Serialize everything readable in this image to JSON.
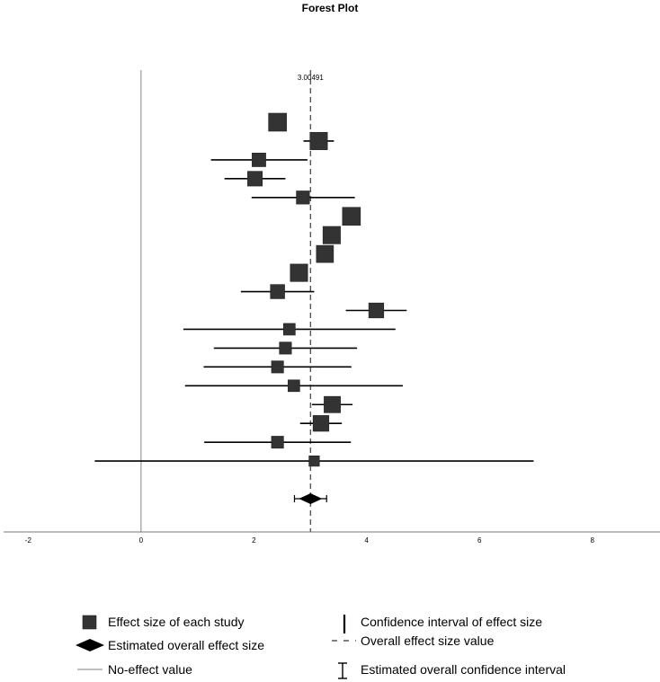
{
  "chart_data": {
    "type": "forest",
    "title": "Forest Plot",
    "xlabel": "",
    "ylabel": "",
    "xlim": [
      -2.5,
      9.2
    ],
    "x_ticks": [
      "-2",
      "0",
      "2",
      "4",
      "6",
      "8"
    ],
    "x_tick_values": [
      -2,
      0,
      2,
      4,
      6,
      8
    ],
    "no_effect_value": 0,
    "overall": {
      "estimate": 3.00491,
      "estimate_label": "3.00491",
      "ci_low": 2.72,
      "ci_high": 3.29
    },
    "studies": [
      {
        "estimate": 2.42,
        "ci_low": 2.38,
        "ci_high": 2.46,
        "weight": 1.0
      },
      {
        "estimate": 3.15,
        "ci_low": 2.88,
        "ci_high": 3.42,
        "weight": 0.95
      },
      {
        "estimate": 2.09,
        "ci_low": 1.24,
        "ci_high": 2.95,
        "weight": 0.6
      },
      {
        "estimate": 2.02,
        "ci_low": 1.48,
        "ci_high": 2.56,
        "weight": 0.7
      },
      {
        "estimate": 2.87,
        "ci_low": 1.96,
        "ci_high": 3.79,
        "weight": 0.55
      },
      {
        "estimate": 3.73,
        "ci_low": 3.71,
        "ci_high": 3.75,
        "weight": 1.0
      },
      {
        "estimate": 3.38,
        "ci_low": 3.36,
        "ci_high": 3.4,
        "weight": 0.95
      },
      {
        "estimate": 3.26,
        "ci_low": 3.24,
        "ci_high": 3.28,
        "weight": 0.92
      },
      {
        "estimate": 2.8,
        "ci_low": 2.78,
        "ci_high": 2.82,
        "weight": 0.95
      },
      {
        "estimate": 2.42,
        "ci_low": 1.77,
        "ci_high": 3.07,
        "weight": 0.65
      },
      {
        "estimate": 4.17,
        "ci_low": 3.63,
        "ci_high": 4.71,
        "weight": 0.72
      },
      {
        "estimate": 2.63,
        "ci_low": 0.75,
        "ci_high": 4.51,
        "weight": 0.42
      },
      {
        "estimate": 2.56,
        "ci_low": 1.29,
        "ci_high": 3.83,
        "weight": 0.45
      },
      {
        "estimate": 2.42,
        "ci_low": 1.11,
        "ci_high": 3.73,
        "weight": 0.45
      },
      {
        "estimate": 2.71,
        "ci_low": 0.78,
        "ci_high": 4.64,
        "weight": 0.42
      },
      {
        "estimate": 3.39,
        "ci_low": 3.03,
        "ci_high": 3.75,
        "weight": 0.85
      },
      {
        "estimate": 3.19,
        "ci_low": 2.82,
        "ci_high": 3.56,
        "weight": 0.8
      },
      {
        "estimate": 2.42,
        "ci_low": 1.12,
        "ci_high": 3.72,
        "weight": 0.45
      },
      {
        "estimate": 3.07,
        "ci_low": -0.82,
        "ci_high": 6.96,
        "weight": 0.3
      }
    ],
    "legend": [
      {
        "key": "study",
        "label": "Effect size of each study"
      },
      {
        "key": "overall",
        "label": "Estimated overall effect size"
      },
      {
        "key": "noeffect",
        "label": "No-effect value"
      },
      {
        "key": "ci",
        "label": "Confidence interval of effect size"
      },
      {
        "key": "overallline",
        "label": "Overall effect size value"
      },
      {
        "key": "overallci",
        "label": "Estimated overall confidence interval"
      }
    ],
    "colors": {
      "marker": "#333333",
      "line": "#000000",
      "no_effect": "#999999",
      "overall_line": "#555555",
      "axis": "#777777"
    }
  }
}
